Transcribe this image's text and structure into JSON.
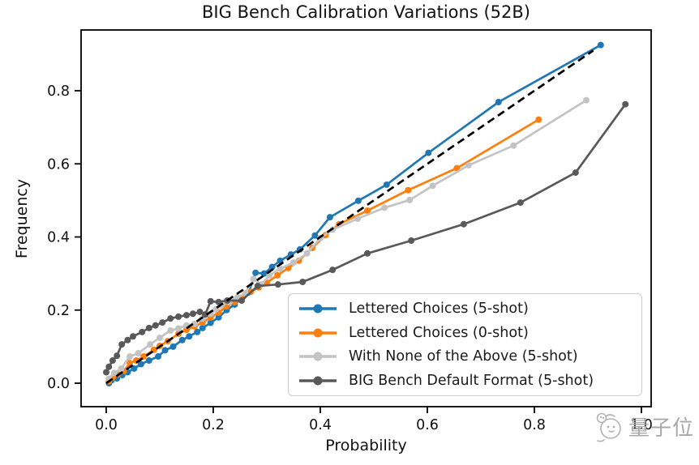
{
  "title": "BIG Bench Calibration Variations (52B)",
  "watermark": {
    "text": "量子位",
    "logo": "qbitai-mascot-icon"
  },
  "chart_data": {
    "type": "line",
    "title": "BIG Bench Calibration Variations (52B)",
    "xlabel": "Probability",
    "ylabel": "Frequency",
    "xlim": [
      -0.049,
      1.018
    ],
    "ylim": [
      -0.064,
      0.966
    ],
    "x_ticks": [
      0.0,
      0.2,
      0.4,
      0.6,
      0.8,
      1.0
    ],
    "x_tick_labels": [
      "0.0",
      "0.2",
      "0.4",
      "0.6",
      "0.8",
      "1.0"
    ],
    "y_ticks": [
      0.0,
      0.2,
      0.4,
      0.6,
      0.8
    ],
    "y_tick_labels": [
      "0.0",
      "0.2",
      "0.4",
      "0.6",
      "0.8"
    ],
    "grid": false,
    "legend_position": "lower right inside",
    "reference_line": {
      "name": "perfect-calibration-diagonal",
      "style": "dashed",
      "color": "#000000",
      "points": [
        [
          0.0,
          0.0
        ],
        [
          0.91,
          0.91
        ]
      ]
    },
    "series": [
      {
        "name": "Lettered Choices (5-shot)",
        "color": "#1f77b4",
        "marker": "circle",
        "points": [
          [
            0.005,
            0.0
          ],
          [
            0.01,
            0.008
          ],
          [
            0.02,
            0.013
          ],
          [
            0.03,
            0.022
          ],
          [
            0.04,
            0.03
          ],
          [
            0.052,
            0.04
          ],
          [
            0.065,
            0.052
          ],
          [
            0.08,
            0.062
          ],
          [
            0.097,
            0.073
          ],
          [
            0.11,
            0.09
          ],
          [
            0.125,
            0.1
          ],
          [
            0.142,
            0.118
          ],
          [
            0.155,
            0.128
          ],
          [
            0.17,
            0.14
          ],
          [
            0.18,
            0.151
          ],
          [
            0.195,
            0.165
          ],
          [
            0.21,
            0.18
          ],
          [
            0.225,
            0.2
          ],
          [
            0.24,
            0.215
          ],
          [
            0.255,
            0.235
          ],
          [
            0.266,
            0.248
          ],
          [
            0.279,
            0.302
          ],
          [
            0.295,
            0.3
          ],
          [
            0.31,
            0.318
          ],
          [
            0.325,
            0.335
          ],
          [
            0.345,
            0.352
          ],
          [
            0.362,
            0.366
          ],
          [
            0.39,
            0.404
          ],
          [
            0.418,
            0.454
          ],
          [
            0.471,
            0.499
          ],
          [
            0.524,
            0.543
          ],
          [
            0.602,
            0.63
          ],
          [
            0.733,
            0.769
          ],
          [
            0.924,
            0.925
          ]
        ]
      },
      {
        "name": "Lettered Choices (0-shot)",
        "color": "#ff7f0e",
        "marker": "circle",
        "points": [
          [
            0.005,
            0.005
          ],
          [
            0.012,
            0.015
          ],
          [
            0.022,
            0.024
          ],
          [
            0.033,
            0.033
          ],
          [
            0.044,
            0.055
          ],
          [
            0.056,
            0.062
          ],
          [
            0.07,
            0.073
          ],
          [
            0.089,
            0.091
          ],
          [
            0.1,
            0.102
          ],
          [
            0.115,
            0.115
          ],
          [
            0.135,
            0.135
          ],
          [
            0.15,
            0.146
          ],
          [
            0.165,
            0.155
          ],
          [
            0.18,
            0.166
          ],
          [
            0.195,
            0.18
          ],
          [
            0.21,
            0.193
          ],
          [
            0.225,
            0.21
          ],
          [
            0.24,
            0.222
          ],
          [
            0.255,
            0.235
          ],
          [
            0.27,
            0.25
          ],
          [
            0.285,
            0.262
          ],
          [
            0.3,
            0.275
          ],
          [
            0.32,
            0.295
          ],
          [
            0.34,
            0.315
          ],
          [
            0.36,
            0.335
          ],
          [
            0.385,
            0.37
          ],
          [
            0.41,
            0.405
          ],
          [
            0.435,
            0.435
          ],
          [
            0.488,
            0.472
          ],
          [
            0.564,
            0.528
          ],
          [
            0.655,
            0.588
          ],
          [
            0.808,
            0.721
          ]
        ]
      },
      {
        "name": "With None of the Above (5-shot)",
        "color": "#c3c3c3",
        "marker": "circle",
        "points": [
          [
            0.005,
            0.012
          ],
          [
            0.015,
            0.028
          ],
          [
            0.028,
            0.04
          ],
          [
            0.044,
            0.073
          ],
          [
            0.06,
            0.082
          ],
          [
            0.082,
            0.106
          ],
          [
            0.1,
            0.124
          ],
          [
            0.12,
            0.144
          ],
          [
            0.135,
            0.15
          ],
          [
            0.15,
            0.158
          ],
          [
            0.165,
            0.162
          ],
          [
            0.18,
            0.177
          ],
          [
            0.195,
            0.19
          ],
          [
            0.205,
            0.202
          ],
          [
            0.215,
            0.213
          ],
          [
            0.23,
            0.222
          ],
          [
            0.245,
            0.235
          ],
          [
            0.26,
            0.246
          ],
          [
            0.275,
            0.285
          ],
          [
            0.29,
            0.27
          ],
          [
            0.305,
            0.295
          ],
          [
            0.325,
            0.313
          ],
          [
            0.35,
            0.33
          ],
          [
            0.375,
            0.355
          ],
          [
            0.4,
            0.397
          ],
          [
            0.423,
            0.42
          ],
          [
            0.47,
            0.45
          ],
          [
            0.52,
            0.48
          ],
          [
            0.567,
            0.501
          ],
          [
            0.61,
            0.54
          ],
          [
            0.677,
            0.596
          ],
          [
            0.761,
            0.65
          ],
          [
            0.897,
            0.774
          ]
        ]
      },
      {
        "name": "BIG Bench Default Format (5-shot)",
        "color": "#595959",
        "marker": "circle",
        "points": [
          [
            0.0,
            0.03
          ],
          [
            0.005,
            0.045
          ],
          [
            0.012,
            0.062
          ],
          [
            0.02,
            0.075
          ],
          [
            0.029,
            0.106
          ],
          [
            0.04,
            0.118
          ],
          [
            0.05,
            0.128
          ],
          [
            0.067,
            0.14
          ],
          [
            0.08,
            0.151
          ],
          [
            0.092,
            0.158
          ],
          [
            0.105,
            0.166
          ],
          [
            0.12,
            0.177
          ],
          [
            0.135,
            0.182
          ],
          [
            0.15,
            0.186
          ],
          [
            0.162,
            0.19
          ],
          [
            0.175,
            0.195
          ],
          [
            0.185,
            0.188
          ],
          [
            0.195,
            0.224
          ],
          [
            0.21,
            0.222
          ],
          [
            0.226,
            0.226
          ],
          [
            0.253,
            0.226
          ],
          [
            0.283,
            0.266
          ],
          [
            0.321,
            0.27
          ],
          [
            0.367,
            0.277
          ],
          [
            0.423,
            0.31
          ],
          [
            0.488,
            0.355
          ],
          [
            0.57,
            0.39
          ],
          [
            0.668,
            0.435
          ],
          [
            0.774,
            0.494
          ],
          [
            0.877,
            0.576
          ],
          [
            0.97,
            0.763
          ]
        ]
      }
    ]
  }
}
